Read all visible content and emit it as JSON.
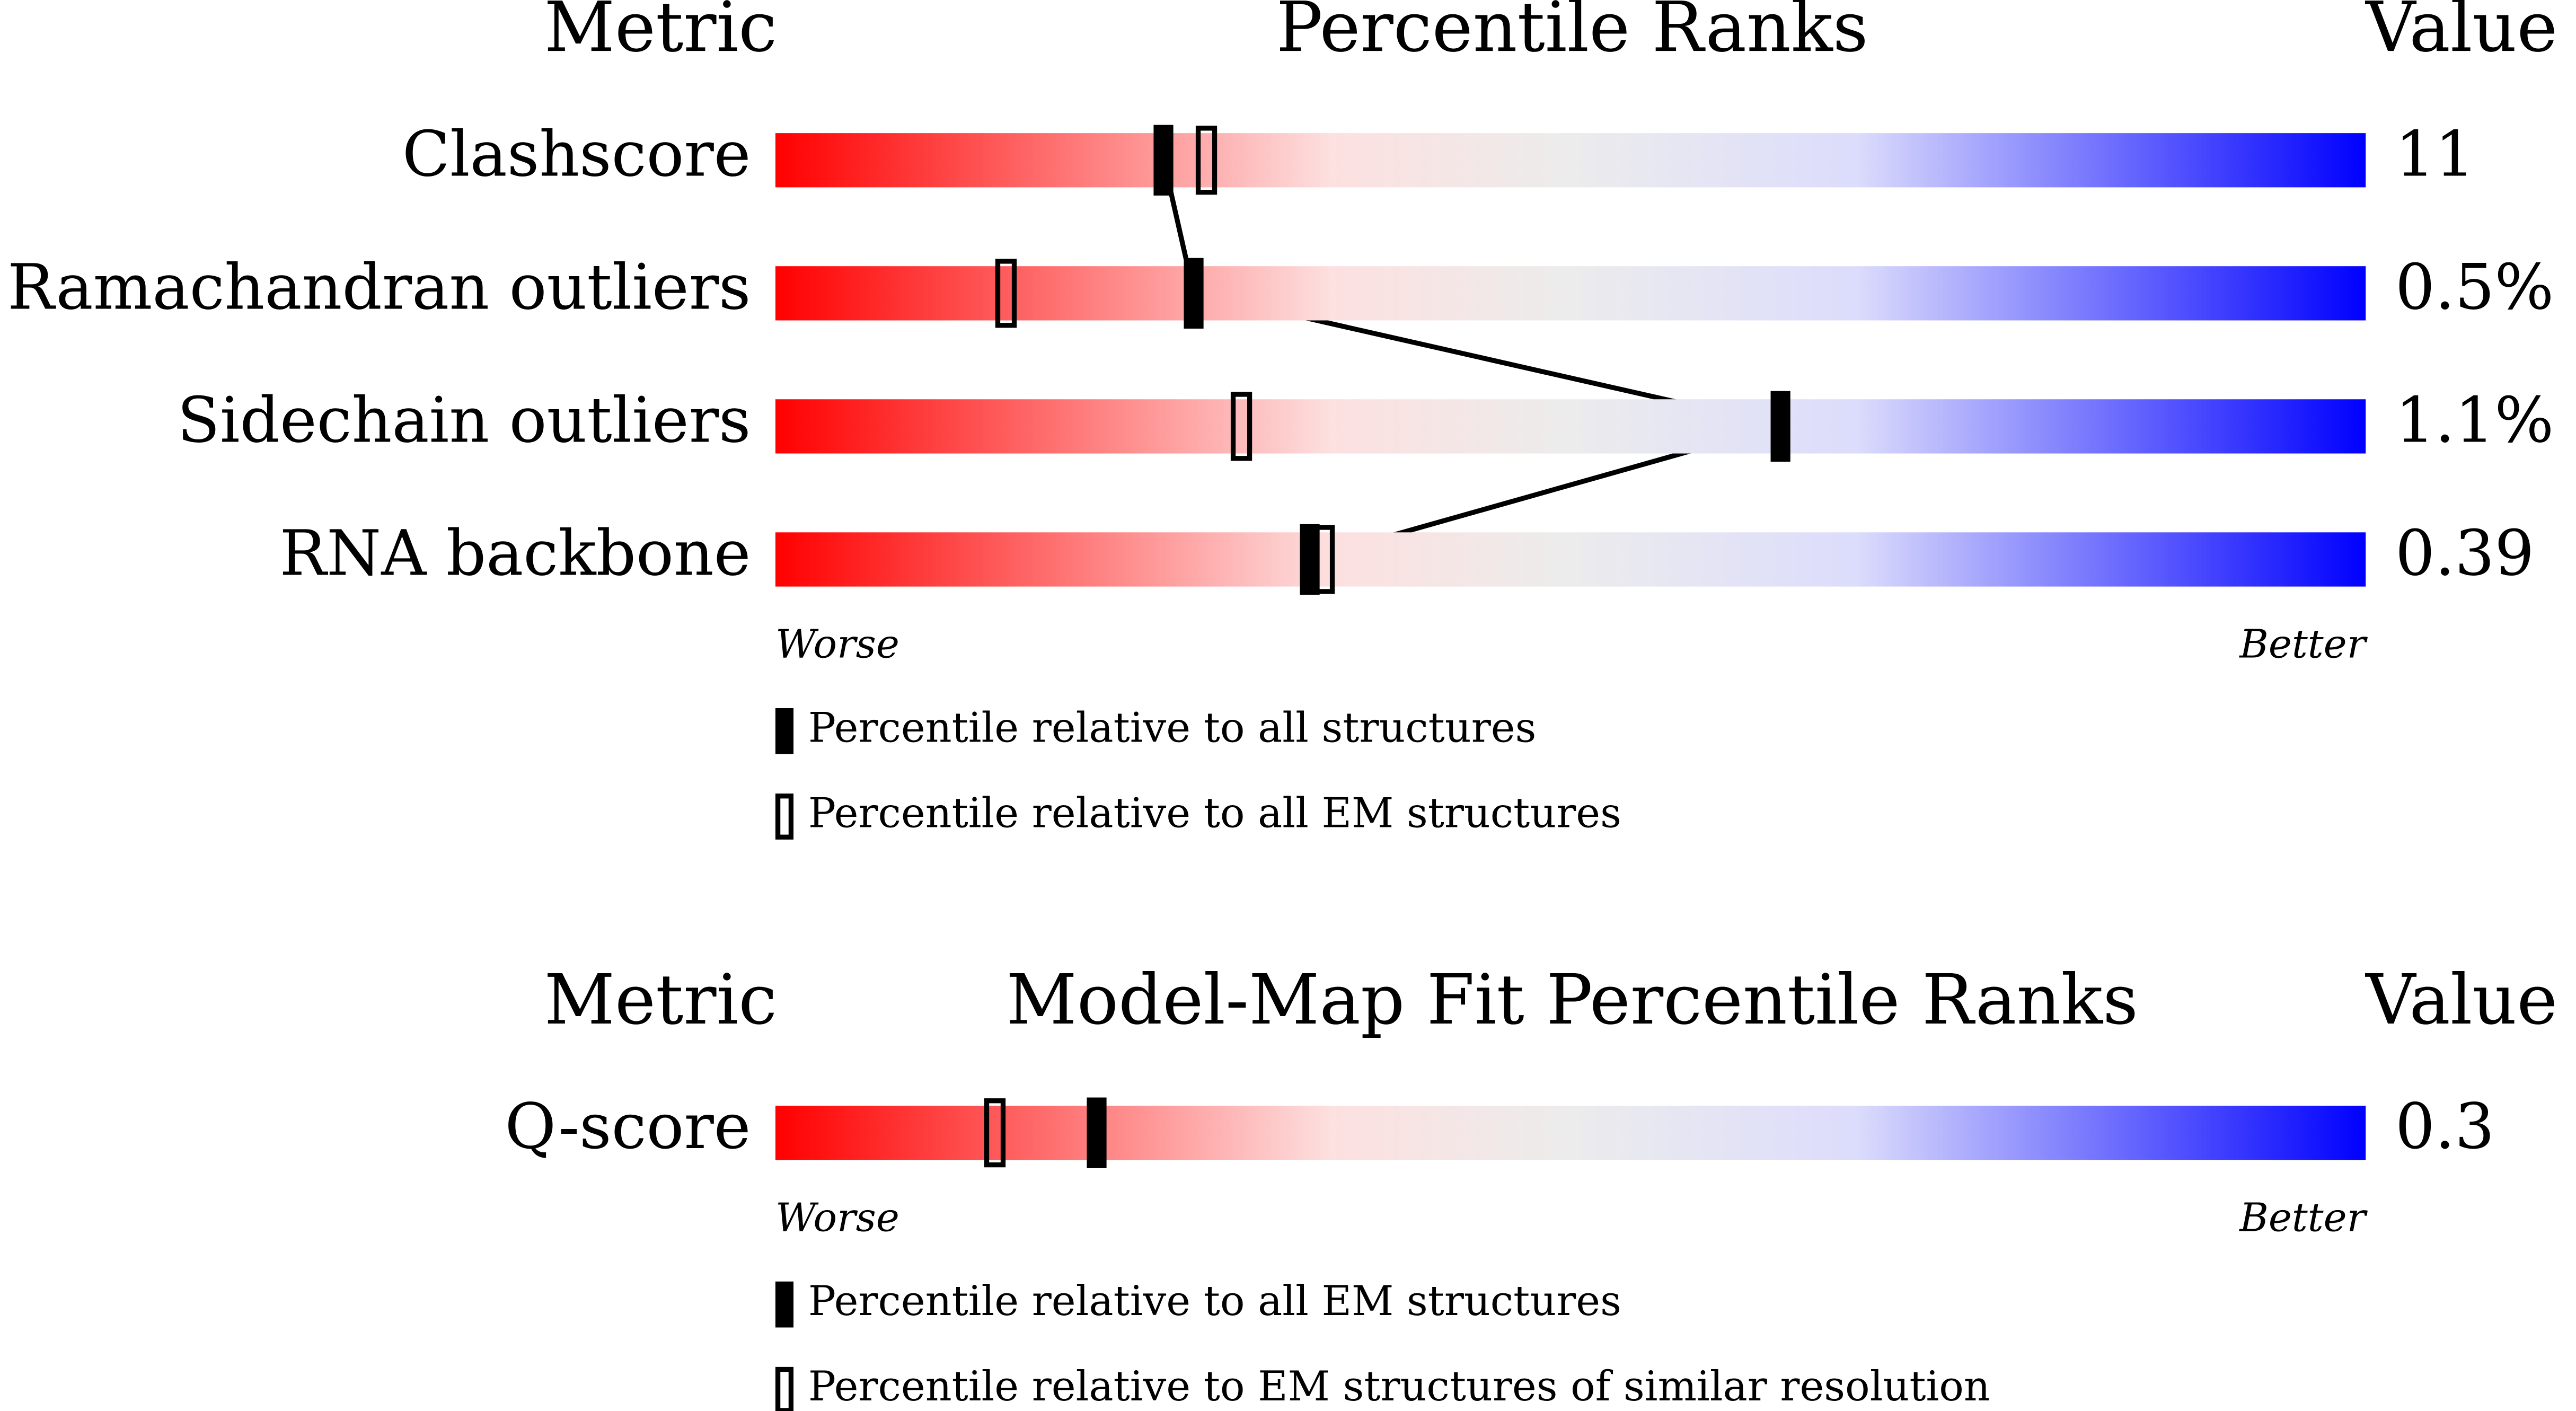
{
  "panels": [
    {
      "headers": {
        "metric": "Metric",
        "title": "Percentile Ranks",
        "value": "Value"
      },
      "rows": [
        {
          "metric": "Clashscore",
          "value": "11",
          "percentile_filled": 24.4,
          "percentile_open": 27.1
        },
        {
          "metric": "Ramachandran outliers",
          "value": "0.5%",
          "percentile_filled": 26.3,
          "percentile_open": 14.5
        },
        {
          "metric": "Sidechain outliers",
          "value": "1.1%",
          "percentile_filled": 63.2,
          "percentile_open": 29.3
        },
        {
          "metric": "RNA backbone",
          "value": "0.39",
          "percentile_filled": 33.6,
          "percentile_open": 34.5
        }
      ],
      "worse": "Worse",
      "better": "Better",
      "legend": {
        "filled": "Percentile relative to all structures",
        "open": "Percentile relative to all EM structures"
      }
    },
    {
      "headers": {
        "metric": "Metric",
        "title": "Model-Map Fit Percentile Ranks",
        "value": "Value"
      },
      "rows": [
        {
          "metric": "Q-score",
          "value": "0.3",
          "percentile_filled": 20.2,
          "percentile_open": 13.8
        }
      ],
      "worse": "Worse",
      "better": "Better",
      "legend": {
        "filled": "Percentile relative to all EM structures",
        "open": "Percentile relative to EM structures of similar resolution"
      }
    }
  ]
}
